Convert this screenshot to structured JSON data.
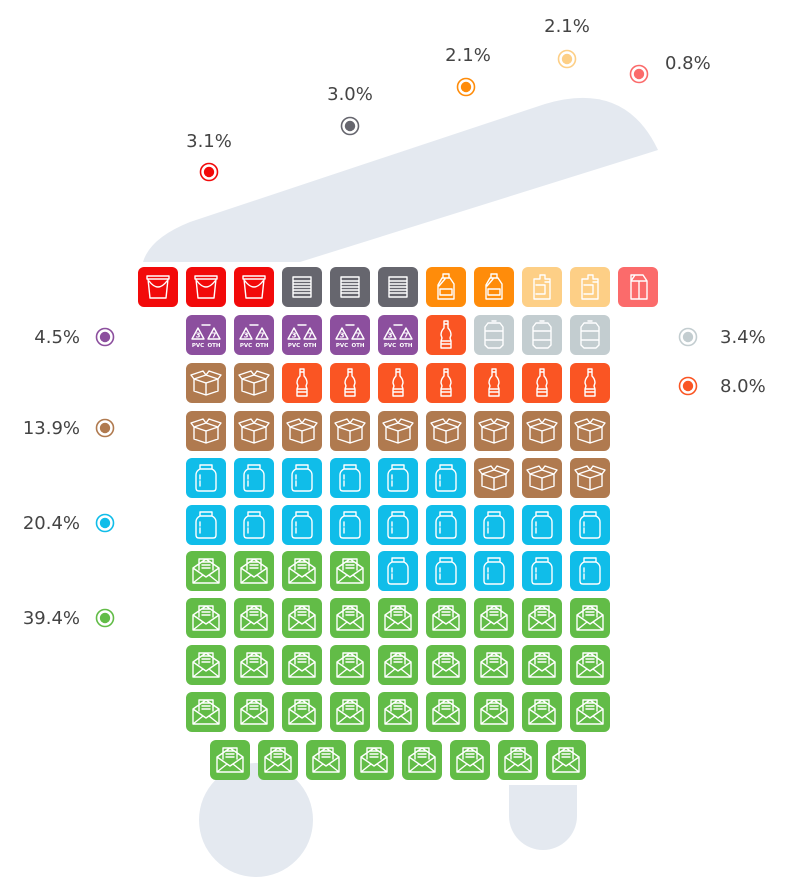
{
  "chart_data": {
    "type": "waffle",
    "total_cells": 100,
    "series": [
      {
        "key": "red",
        "value": 3.1,
        "label": "3.1%",
        "cells": 3,
        "color": "#f20a0a",
        "icon": "bucket-icon"
      },
      {
        "key": "gray",
        "value": 3.0,
        "label": "3.0%",
        "cells": 3,
        "color": "#66666e",
        "icon": "can-icon"
      },
      {
        "key": "orange",
        "value": 2.1,
        "label": "2.1%",
        "cells": 2,
        "color": "#ff8c0a",
        "icon": "detergent-bottle-icon"
      },
      {
        "key": "lightorange",
        "value": 2.1,
        "label": "2.1%",
        "cells": 2,
        "color": "#fdcf86",
        "icon": "jerrycan-icon"
      },
      {
        "key": "salmon",
        "value": 0.8,
        "label": "0.8%",
        "cells": 1,
        "color": "#fb6b6b",
        "icon": "carton-icon"
      },
      {
        "key": "purple",
        "value": 4.5,
        "label": "4.5%",
        "cells": 5,
        "color": "#8c4f9e",
        "icon": "recycle-pvc-oth-icon",
        "icon_text": [
          "3",
          "7",
          "PVC",
          "OTH"
        ]
      },
      {
        "key": "orangered",
        "value": 8.0,
        "label": "8.0%",
        "cells": 8,
        "color": "#fa5523",
        "icon": "plastic-bottle-icon"
      },
      {
        "key": "lightgray",
        "value": 3.4,
        "label": "3.4%",
        "cells": 3,
        "color": "#c3cdd0",
        "icon": "aluminium-can-icon"
      },
      {
        "key": "brown",
        "value": 13.9,
        "label": "13.9%",
        "cells": 14,
        "color": "#b07a4f",
        "icon": "cardboard-box-icon"
      },
      {
        "key": "blue",
        "value": 20.4,
        "label": "20.4%",
        "cells": 20,
        "color": "#10bde9",
        "icon": "glass-jar-icon"
      },
      {
        "key": "green",
        "value": 39.4,
        "label": "39.4%",
        "cells": 39,
        "color": "#62bc47",
        "icon": "paper-envelope-icon"
      }
    ],
    "decoration": {
      "shape": "trash-bin",
      "color": "#e4e9f0"
    }
  }
}
